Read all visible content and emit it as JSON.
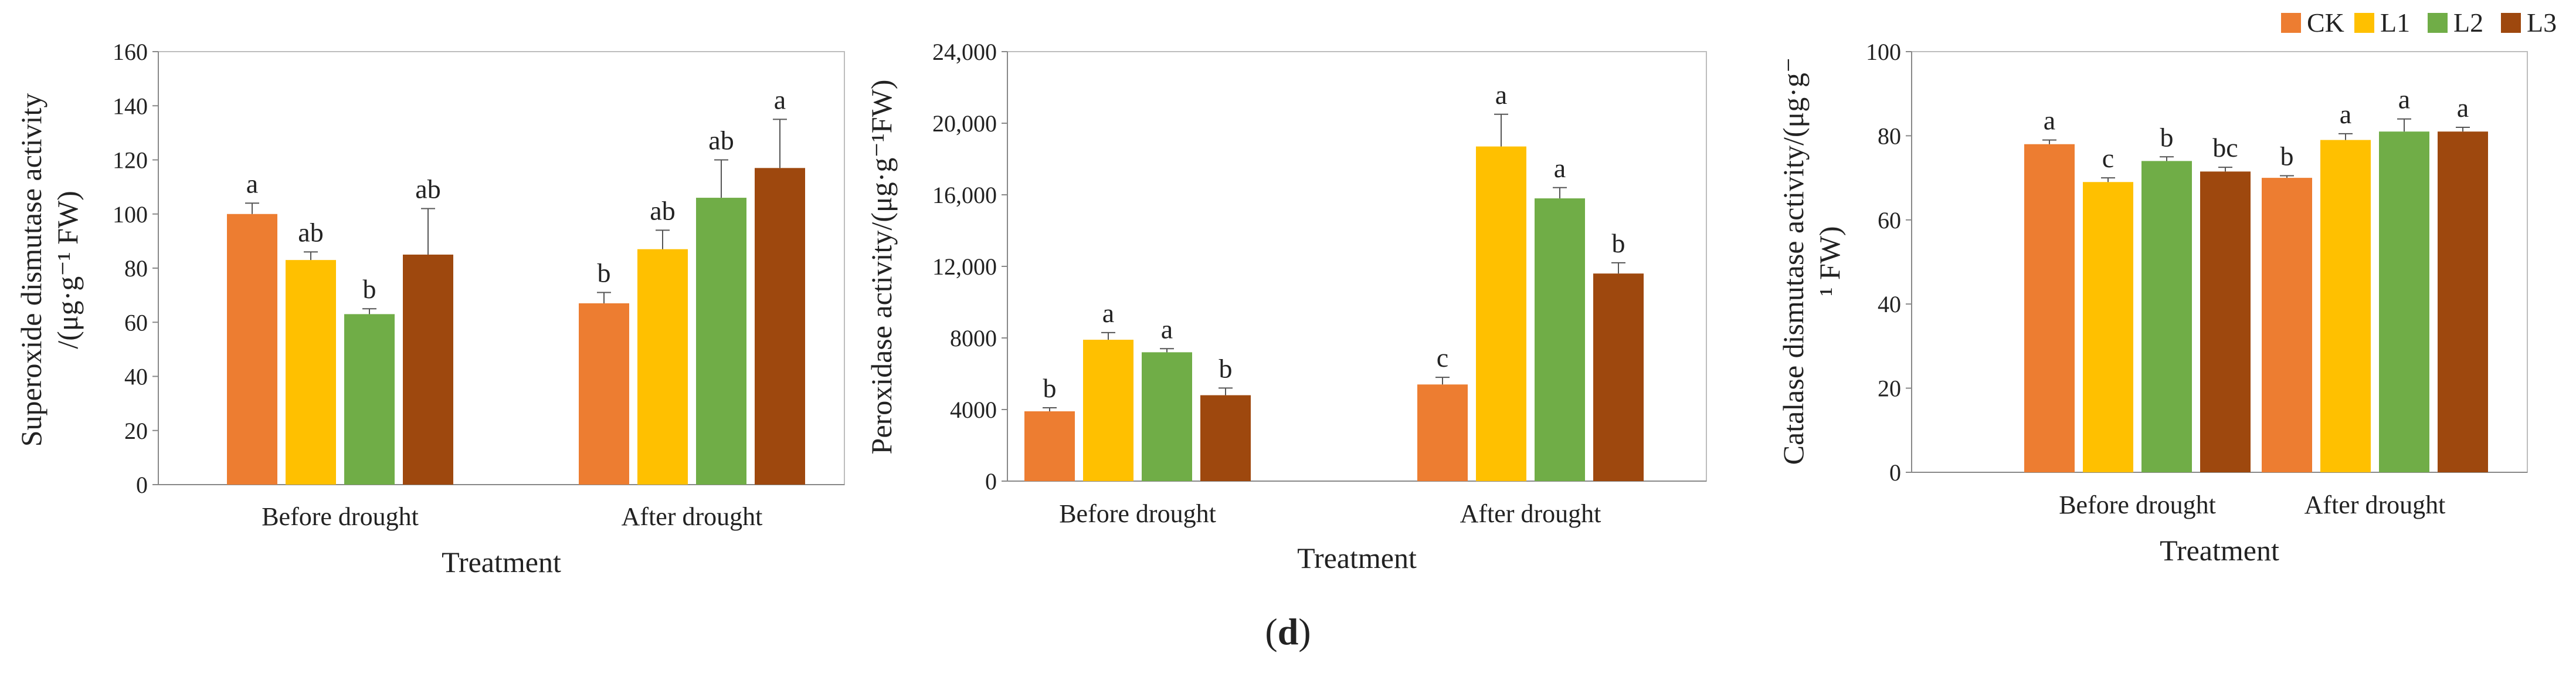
{
  "figure_label": "(d)",
  "figure_label_parts": {
    "open": "(",
    "letter": "d",
    "close": ")"
  },
  "legend": {
    "position": "top-right",
    "entries": [
      {
        "name": "CK",
        "color": "#ED7D31"
      },
      {
        "name": "L1",
        "color": "#FFC000"
      },
      {
        "name": "L2",
        "color": "#70AD47"
      },
      {
        "name": "L3",
        "color": "#9E480E"
      }
    ]
  },
  "chart_data": [
    {
      "type": "bar",
      "title": "",
      "xlabel": "Treatment",
      "ylabel": "Superoxide dismutase activity /(μg·g⁻¹ FW)",
      "ylabel_lines": [
        "Superoxide dismutase activity",
        "/(μg·g⁻¹ FW)"
      ],
      "ylim": [
        0,
        160
      ],
      "yticks": [
        0,
        20,
        40,
        60,
        80,
        100,
        120,
        140,
        160
      ],
      "ytick_labels": [
        "0",
        "20",
        "40",
        "60",
        "80",
        "100",
        "120",
        "140",
        "160"
      ],
      "categories": [
        "Before drought",
        "After drought"
      ],
      "series": [
        {
          "name": "CK",
          "color": "#ED7D31",
          "values": [
            100,
            67
          ],
          "errors": [
            4,
            4
          ],
          "letters": [
            "a",
            "b"
          ]
        },
        {
          "name": "L1",
          "color": "#FFC000",
          "values": [
            83,
            87
          ],
          "errors": [
            3,
            7
          ],
          "letters": [
            "ab",
            "ab"
          ]
        },
        {
          "name": "L2",
          "color": "#70AD47",
          "values": [
            63,
            106
          ],
          "errors": [
            2,
            14
          ],
          "letters": [
            "b",
            "ab"
          ]
        },
        {
          "name": "L3",
          "color": "#9E480E",
          "values": [
            85,
            117
          ],
          "errors": [
            17,
            18
          ],
          "letters": [
            "ab",
            "a"
          ]
        }
      ]
    },
    {
      "type": "bar",
      "title": "",
      "xlabel": "Treatment",
      "ylabel": "Peroxidase activity/(μg·g⁻¹FW)",
      "ylabel_lines": [
        "Peroxidase activity/(μg·g⁻¹FW)"
      ],
      "ylim": [
        0,
        24000
      ],
      "yticks": [
        0,
        4000,
        8000,
        12000,
        16000,
        20000,
        24000
      ],
      "ytick_labels": [
        "0",
        "4000",
        "8000",
        "12,000",
        "16,000",
        "20,000",
        "24,000"
      ],
      "categories": [
        "Before drought",
        "After drought"
      ],
      "series": [
        {
          "name": "CK",
          "color": "#ED7D31",
          "values": [
            3900,
            5400
          ],
          "errors": [
            200,
            400
          ],
          "letters": [
            "b",
            "c"
          ]
        },
        {
          "name": "L1",
          "color": "#FFC000",
          "values": [
            7900,
            18700
          ],
          "errors": [
            400,
            1800
          ],
          "letters": [
            "a",
            "a"
          ]
        },
        {
          "name": "L2",
          "color": "#70AD47",
          "values": [
            7200,
            15800
          ],
          "errors": [
            200,
            600
          ],
          "letters": [
            "a",
            "a"
          ]
        },
        {
          "name": "L3",
          "color": "#9E480E",
          "values": [
            4800,
            11600
          ],
          "errors": [
            400,
            600
          ],
          "letters": [
            "b",
            "b"
          ]
        }
      ]
    },
    {
      "type": "bar",
      "title": "",
      "xlabel": "Treatment",
      "ylabel": "Catalase dismutase activity/(μg·g⁻¹ FW)",
      "ylabel_lines": [
        "Catalase dismutase activity/(μg·g⁻",
        "¹ FW)"
      ],
      "ylim": [
        0,
        100
      ],
      "yticks": [
        0,
        20,
        40,
        60,
        80,
        100
      ],
      "ytick_labels": [
        "0",
        "20",
        "40",
        "60",
        "80",
        "100"
      ],
      "categories": [
        "Before drought",
        "After drought"
      ],
      "series": [
        {
          "name": "CK",
          "color": "#ED7D31",
          "values": [
            78,
            70
          ],
          "errors": [
            1,
            0.5
          ],
          "letters": [
            "a",
            "b"
          ]
        },
        {
          "name": "L1",
          "color": "#FFC000",
          "values": [
            69,
            79
          ],
          "errors": [
            1,
            1.5
          ],
          "letters": [
            "c",
            "a"
          ]
        },
        {
          "name": "L2",
          "color": "#70AD47",
          "values": [
            74,
            81
          ],
          "errors": [
            1,
            3
          ],
          "letters": [
            "b",
            "a"
          ]
        },
        {
          "name": "L3",
          "color": "#9E480E",
          "values": [
            71.5,
            81
          ],
          "errors": [
            1,
            1
          ],
          "letters": [
            "bc",
            "a"
          ]
        }
      ]
    }
  ]
}
